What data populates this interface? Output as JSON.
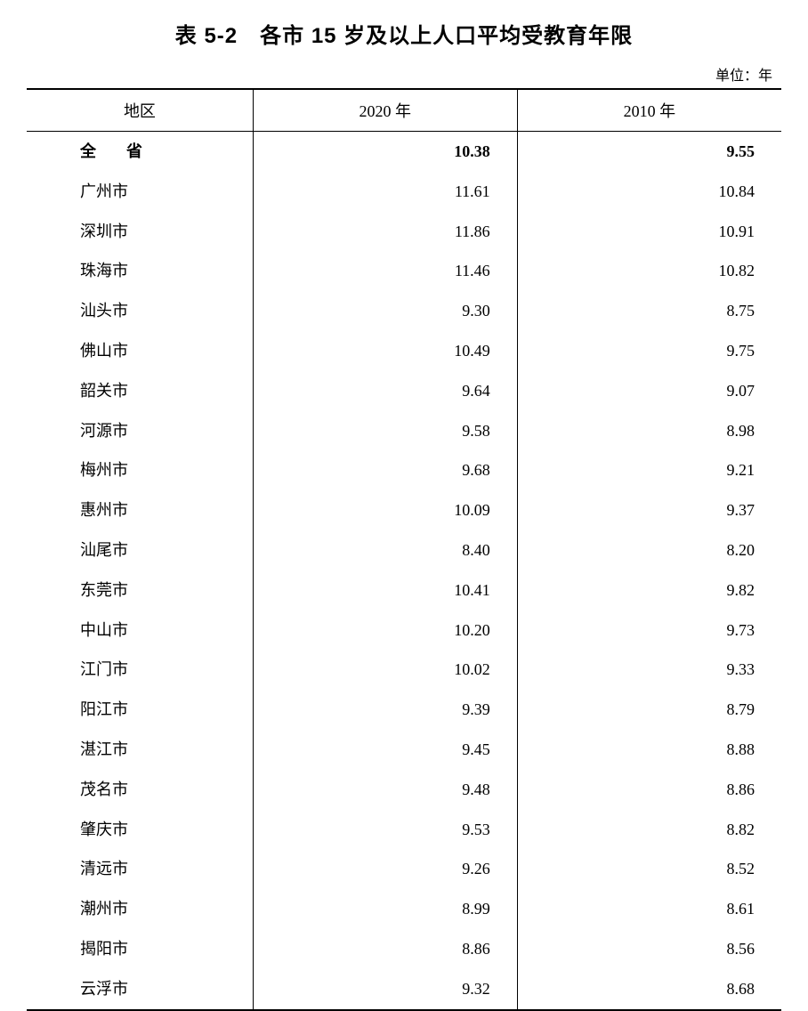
{
  "title": "表 5-2　各市 15 岁及以上人口平均受教育年限",
  "unit_label": "单位：年",
  "table": {
    "columns": [
      "地区",
      "2020 年",
      "2010 年"
    ],
    "total_row": {
      "region": "全　省",
      "v2020": "10.38",
      "v2010": "9.55"
    },
    "rows": [
      {
        "region": "广州市",
        "v2020": "11.61",
        "v2010": "10.84"
      },
      {
        "region": "深圳市",
        "v2020": "11.86",
        "v2010": "10.91"
      },
      {
        "region": "珠海市",
        "v2020": "11.46",
        "v2010": "10.82"
      },
      {
        "region": "汕头市",
        "v2020": "9.30",
        "v2010": "8.75"
      },
      {
        "region": "佛山市",
        "v2020": "10.49",
        "v2010": "9.75"
      },
      {
        "region": "韶关市",
        "v2020": "9.64",
        "v2010": "9.07"
      },
      {
        "region": "河源市",
        "v2020": "9.58",
        "v2010": "8.98"
      },
      {
        "region": "梅州市",
        "v2020": "9.68",
        "v2010": "9.21"
      },
      {
        "region": "惠州市",
        "v2020": "10.09",
        "v2010": "9.37"
      },
      {
        "region": "汕尾市",
        "v2020": "8.40",
        "v2010": "8.20"
      },
      {
        "region": "东莞市",
        "v2020": "10.41",
        "v2010": "9.82"
      },
      {
        "region": "中山市",
        "v2020": "10.20",
        "v2010": "9.73"
      },
      {
        "region": "江门市",
        "v2020": "10.02",
        "v2010": "9.33"
      },
      {
        "region": "阳江市",
        "v2020": "9.39",
        "v2010": "8.79"
      },
      {
        "region": "湛江市",
        "v2020": "9.45",
        "v2010": "8.88"
      },
      {
        "region": "茂名市",
        "v2020": "9.48",
        "v2010": "8.86"
      },
      {
        "region": "肇庆市",
        "v2020": "9.53",
        "v2010": "8.82"
      },
      {
        "region": "清远市",
        "v2020": "9.26",
        "v2010": "8.52"
      },
      {
        "region": "潮州市",
        "v2020": "8.99",
        "v2010": "8.61"
      },
      {
        "region": "揭阳市",
        "v2020": "8.86",
        "v2010": "8.56"
      },
      {
        "region": "云浮市",
        "v2020": "9.32",
        "v2010": "8.68"
      }
    ],
    "column_widths_pct": [
      30,
      35,
      35
    ],
    "border_color": "#000000",
    "background_color": "#ffffff",
    "header_font_size_pt": 14,
    "body_font_size_pt": 14,
    "title_font_size_pt": 18,
    "title_font_weight": "bold",
    "total_row_font_weight": "bold"
  }
}
